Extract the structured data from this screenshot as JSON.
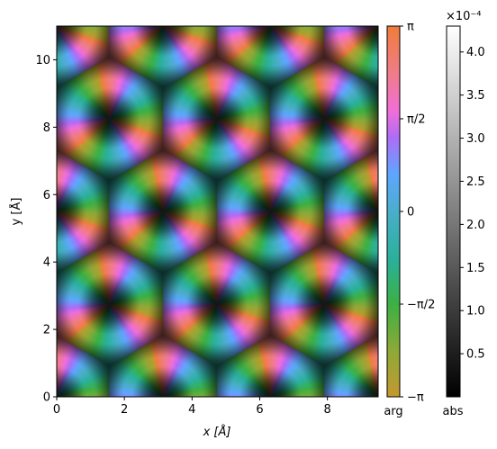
{
  "chart_data": {
    "type": "heatmap",
    "title": "",
    "xlabel": "x [Å]",
    "ylabel": "y [Å]",
    "xlim": [
      0,
      9.5
    ],
    "ylim": [
      0,
      11
    ],
    "xticks": [
      "0",
      "2",
      "4",
      "6",
      "8"
    ],
    "yticks": [
      "0",
      "2",
      "4",
      "6",
      "8",
      "10"
    ],
    "phase_colorbar": {
      "label": "arg",
      "ticks": [
        "−π",
        "−π/2",
        "0",
        "π/2",
        "π"
      ],
      "range": [
        "−3.14159",
        "3.14159"
      ]
    },
    "amplitude_colorbar": {
      "label": "abs",
      "scale_text": "×10⁻⁴",
      "ticks": [
        "0.5",
        "1.0",
        "1.5",
        "2.0",
        "2.5",
        "3.0",
        "3.5",
        "4.0"
      ],
      "range": [
        0,
        4.3
      ]
    },
    "pattern": {
      "description_values": {
        "lattice_a": 3.175,
        "lattice_b": 5.5,
        "max_abs": 0.00043
      }
    },
    "colors": {
      "phase_stops": [
        "#c4982f",
        "#3cb043",
        "#2ab09a",
        "#52a7d8",
        "#5ea6ff",
        "#b06cf5",
        "#f06ed8",
        "#f07c6a",
        "#f07c3a"
      ],
      "abs_low": "#000000",
      "abs_high": "#ffffff"
    }
  }
}
